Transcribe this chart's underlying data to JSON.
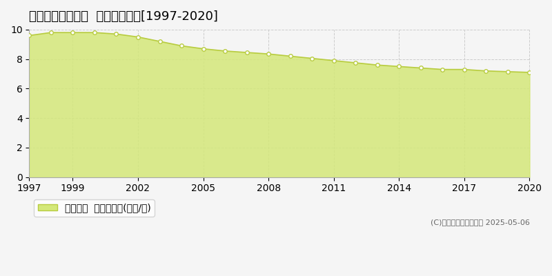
{
  "title": "熊毛郡平生町曽根  基準地価推移[1997-2020]",
  "years": [
    1997,
    1998,
    1999,
    2000,
    2001,
    2002,
    2003,
    2004,
    2005,
    2006,
    2007,
    2008,
    2009,
    2010,
    2011,
    2012,
    2013,
    2014,
    2015,
    2016,
    2017,
    2018,
    2019,
    2020
  ],
  "values": [
    9.6,
    9.8,
    9.8,
    9.8,
    9.7,
    9.5,
    9.2,
    8.9,
    8.7,
    8.55,
    8.45,
    8.35,
    8.2,
    8.05,
    7.9,
    7.75,
    7.6,
    7.5,
    7.4,
    7.3,
    7.3,
    7.2,
    7.15,
    7.1
  ],
  "ylim": [
    0,
    10
  ],
  "yticks": [
    0,
    2,
    4,
    6,
    8,
    10
  ],
  "xticks": [
    1997,
    1999,
    2002,
    2005,
    2008,
    2011,
    2014,
    2017,
    2020
  ],
  "line_color": "#b8cc40",
  "fill_color": "#d4e87a",
  "fill_alpha": 0.85,
  "marker_color": "white",
  "marker_edge_color": "#b8cc40",
  "background_color": "#f5f5f5",
  "grid_color": "#cccccc",
  "legend_label": "基準地価  平均坪単価(万円/坪)",
  "copyright_text": "(C)土地価格ドットコム 2025-05-06",
  "title_fontsize": 13,
  "axis_fontsize": 10,
  "legend_fontsize": 10
}
